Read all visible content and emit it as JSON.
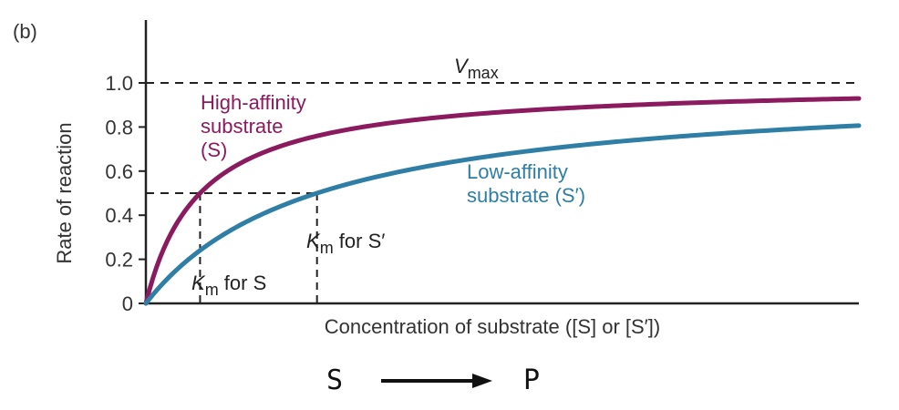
{
  "panel_label": "(b)",
  "reaction": {
    "left": "S",
    "right": "P",
    "arrow_icon": "right-arrow-icon"
  },
  "chart_data": {
    "type": "line",
    "title": "",
    "xlabel": "Concentration of substrate ([S] or [S′])",
    "ylabel": "Rate of reaction",
    "ylim": [
      0,
      1.0
    ],
    "xlim": [
      0,
      10
    ],
    "y_ticks": [
      "0",
      "0.2",
      "0.4",
      "0.6",
      "0.8",
      "1.0"
    ],
    "grid": false,
    "vmax": {
      "value": 1.0,
      "label_main": "V",
      "label_sub": "max"
    },
    "half_rate": 0.5,
    "series": [
      {
        "name": "High-affinity substrate (S)",
        "label_lines": [
          "High-affinity",
          "substrate",
          "(S)"
        ],
        "km": 0.76,
        "vmax": 1.0,
        "color": "#8b1a5e",
        "km_label_main": "K",
        "km_label_sub": "m",
        "km_label_rest": " for S"
      },
      {
        "name": "Low-affinity substrate (S′)",
        "label_lines": [
          "Low-affinity",
          "substrate (S′)"
        ],
        "km": 2.4,
        "vmax": 1.0,
        "color": "#2f7ea6",
        "km_label_main": "K",
        "km_label_sub": "m",
        "km_label_rest": " for S′"
      }
    ]
  }
}
